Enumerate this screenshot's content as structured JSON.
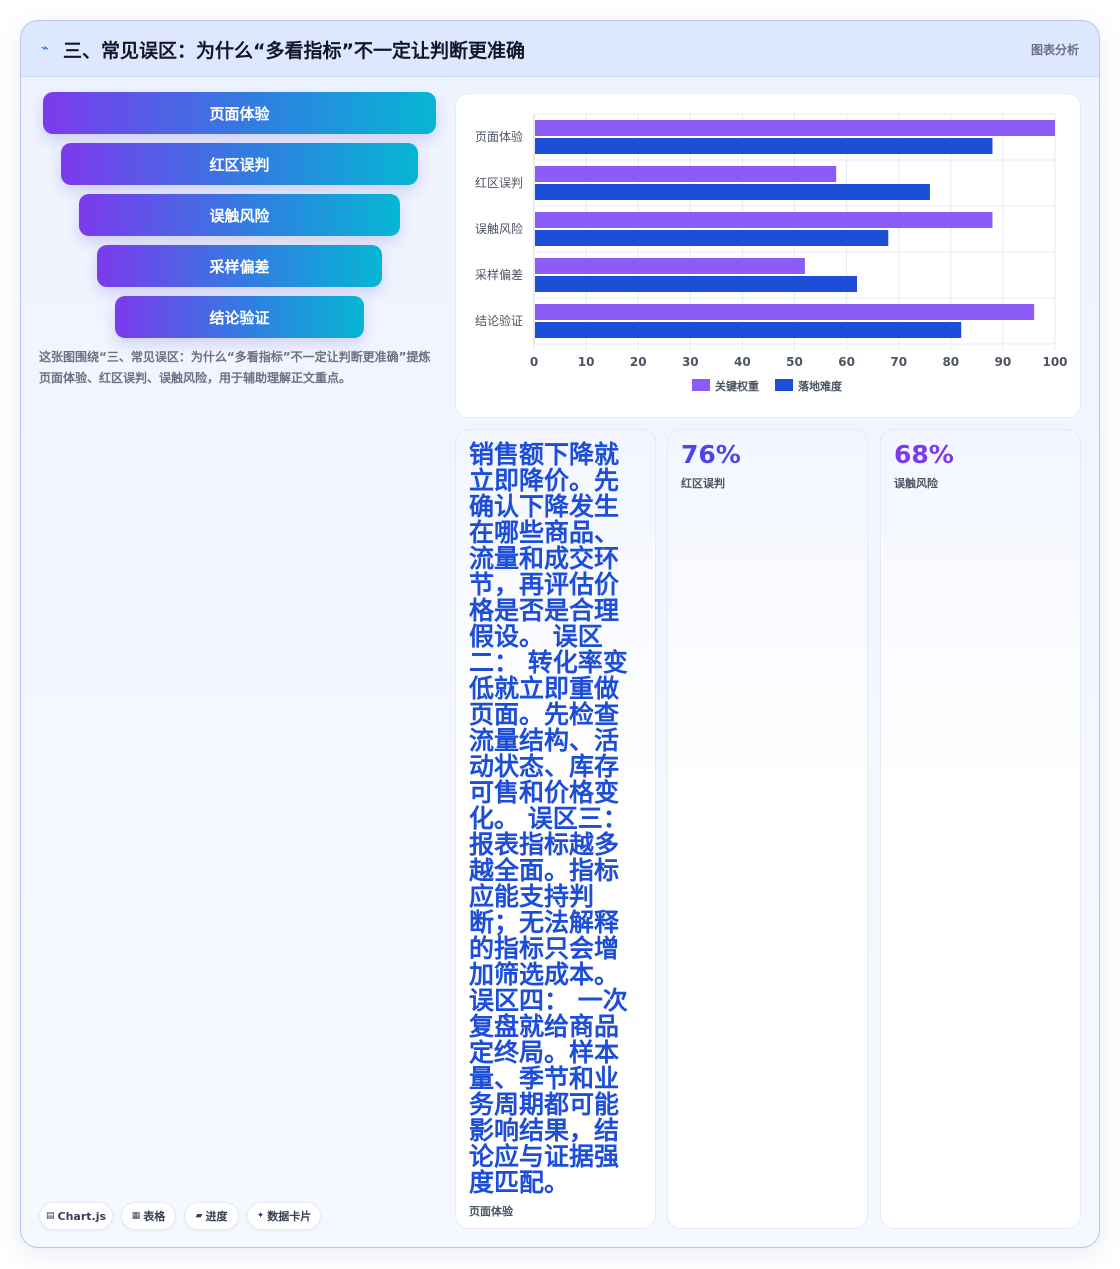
{
  "header": {
    "icon": "⌁",
    "title": "三、常见误区：为什么“多看指标”不一定让判断更准确",
    "right_label": "图表分析"
  },
  "funnel": {
    "steps": [
      "页面体验",
      "红区误判",
      "误触风险",
      "采样偏差",
      "结论验证"
    ]
  },
  "caption": "这张图围绕“三、常见误区：为什么“多看指标”不一定让判断更准确”提炼页面体验、红区误判、误触风险，用于辅助理解正文重点。",
  "chips": [
    {
      "icon": "▤",
      "label": "Chart.js"
    },
    {
      "icon": "▦",
      "label": "表格"
    },
    {
      "icon": "▰",
      "label": "进度"
    },
    {
      "icon": "✦",
      "label": "数据卡片"
    }
  ],
  "chart_data": {
    "type": "bar",
    "orientation": "horizontal",
    "categories": [
      "页面体验",
      "红区误判",
      "误触风险",
      "采样偏差",
      "结论验证"
    ],
    "series": [
      {
        "name": "关键权重",
        "values": [
          100,
          58,
          88,
          52,
          96
        ],
        "color": "#8b5cf6"
      },
      {
        "name": "落地难度",
        "values": [
          88,
          76,
          68,
          62,
          82
        ],
        "color": "#1d4ed8"
      }
    ],
    "xlim": [
      0,
      100
    ],
    "xticks": [
      "0",
      "10",
      "20",
      "30",
      "40",
      "50",
      "60",
      "70",
      "80",
      "90",
      "100"
    ],
    "grid": true,
    "legend": "bottom"
  },
  "kpis": [
    {
      "text": "销售额下降就立即降价。先确认下降发生在哪些商品、流量和成交环节，再评估价格是否是合理假设。 误区二： 转化率变低就立即重做页面。先检查流量结构、活动状态、库存可售和价格变化。 误区三： 报表指标越多越全面。指标应能支持判断；无法解释的指标只会增加筛选成本。 误区四： 一次复盘就给商品定终局。样本量、季节和业务周期都可能影响结果，结论应与证据强度匹配。",
      "label": "页面体验",
      "color": "#1d4ed8"
    },
    {
      "value": "76%",
      "label": "红区误判",
      "color": "#4f46e5"
    },
    {
      "value": "68%",
      "label": "误触风险",
      "color": "#7c3aed"
    }
  ]
}
